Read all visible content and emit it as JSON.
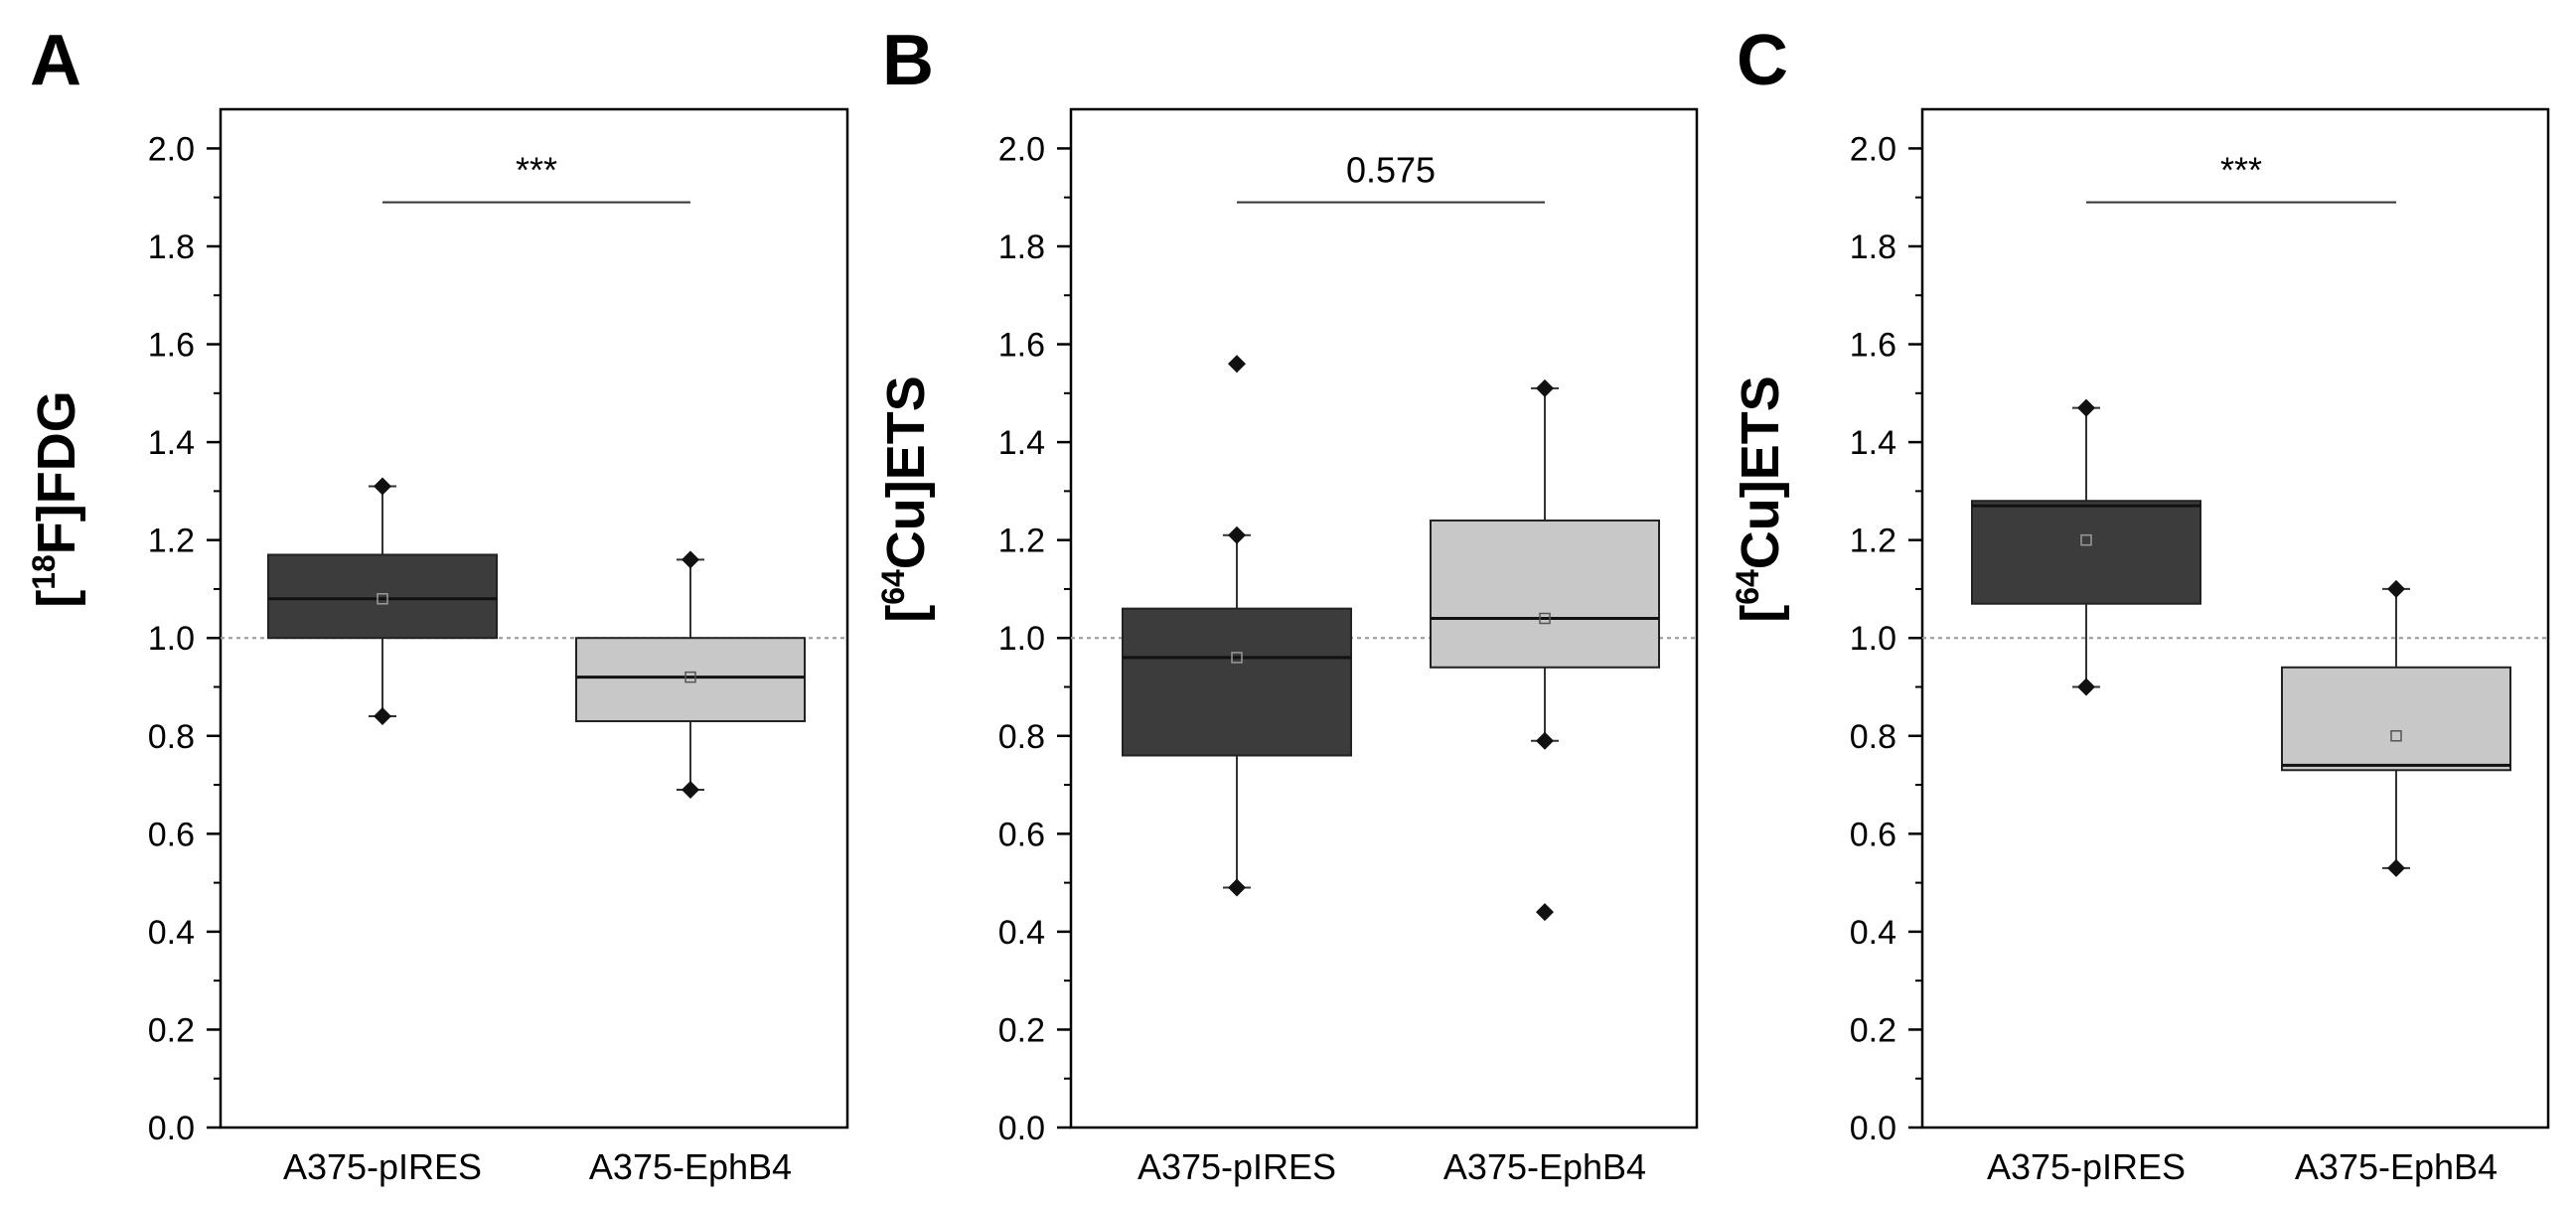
{
  "figure": {
    "colors": {
      "group1_fill": "#3c3c3c",
      "group2_fill": "#c8c8c8",
      "whisker": "#333333",
      "outlier": "#111111",
      "reference_line": "#999999"
    }
  },
  "chart_data": [
    {
      "type": "box",
      "panel": "A",
      "ylabel": "[18F]FDG",
      "ylabel_parts": {
        "open": "[",
        "sup": "18",
        "rest": "F]FDG"
      },
      "ylim": [
        0.0,
        2.08
      ],
      "yticks": [
        0.0,
        0.2,
        0.4,
        0.6,
        0.8,
        1.0,
        1.2,
        1.4,
        1.6,
        1.8,
        2.0
      ],
      "ytick_labels": [
        "0.0",
        "0.2",
        "0.4",
        "0.6",
        "0.8",
        "1.0",
        "1.2",
        "1.4",
        "1.6",
        "1.8",
        "2.0"
      ],
      "reference_line": 1.0,
      "categories": [
        "A375-pIRES",
        "A375-EphB4"
      ],
      "boxes": [
        {
          "q1": 1.0,
          "median": 1.08,
          "q3": 1.17,
          "mean": 1.08,
          "whisker_low": 0.84,
          "whisker_high": 1.31,
          "outliers": [
            0.84,
            1.31
          ]
        },
        {
          "q1": 0.83,
          "median": 0.92,
          "q3": 1.0,
          "mean": 0.92,
          "whisker_low": 0.69,
          "whisker_high": 1.16,
          "outliers": [
            0.69,
            1.16
          ]
        }
      ],
      "significance": {
        "label": "***",
        "y": 1.89
      }
    },
    {
      "type": "box",
      "panel": "B",
      "ylabel": "[64Cu]ETS",
      "ylabel_parts": {
        "open": "[",
        "sup": "64",
        "rest": "Cu]ETS"
      },
      "ylim": [
        0.0,
        2.08
      ],
      "yticks": [
        0.0,
        0.2,
        0.4,
        0.6,
        0.8,
        1.0,
        1.2,
        1.4,
        1.6,
        1.8,
        2.0
      ],
      "ytick_labels": [
        "0.0",
        "0.2",
        "0.4",
        "0.6",
        "0.8",
        "1.0",
        "1.2",
        "1.4",
        "1.6",
        "1.8",
        "2.0"
      ],
      "reference_line": 1.0,
      "categories": [
        "A375-pIRES",
        "A375-EphB4"
      ],
      "boxes": [
        {
          "q1": 0.76,
          "median": 0.96,
          "q3": 1.06,
          "mean": 0.96,
          "whisker_low": 0.49,
          "whisker_high": 1.21,
          "outliers": [
            0.49,
            1.21,
            1.56
          ]
        },
        {
          "q1": 0.94,
          "median": 1.04,
          "q3": 1.24,
          "mean": 1.04,
          "whisker_low": 0.79,
          "whisker_high": 1.51,
          "outliers": [
            0.79,
            1.51,
            0.44
          ]
        }
      ],
      "significance": {
        "label": "0.575",
        "y": 1.89
      }
    },
    {
      "type": "box",
      "panel": "C",
      "ylabel": "[64Cu]ETS",
      "ylabel_parts": {
        "open": "[",
        "sup": "64",
        "rest": "Cu]ETS"
      },
      "ylim": [
        0.0,
        2.08
      ],
      "yticks": [
        0.0,
        0.2,
        0.4,
        0.6,
        0.8,
        1.0,
        1.2,
        1.4,
        1.6,
        1.8,
        2.0
      ],
      "ytick_labels": [
        "0.0",
        "0.2",
        "0.4",
        "0.6",
        "0.8",
        "1.0",
        "1.2",
        "1.4",
        "1.6",
        "1.8",
        "2.0"
      ],
      "reference_line": 1.0,
      "categories": [
        "A375-pIRES",
        "A375-EphB4"
      ],
      "boxes": [
        {
          "q1": 1.07,
          "median": 1.27,
          "q3": 1.28,
          "mean": 1.2,
          "whisker_low": 0.9,
          "whisker_high": 1.47,
          "outliers": [
            0.9,
            1.47
          ]
        },
        {
          "q1": 0.73,
          "median": 0.74,
          "q3": 0.94,
          "mean": 0.8,
          "whisker_low": 0.53,
          "whisker_high": 1.1,
          "outliers": [
            0.53,
            1.1
          ]
        }
      ],
      "significance": {
        "label": "***",
        "y": 1.89
      }
    }
  ]
}
